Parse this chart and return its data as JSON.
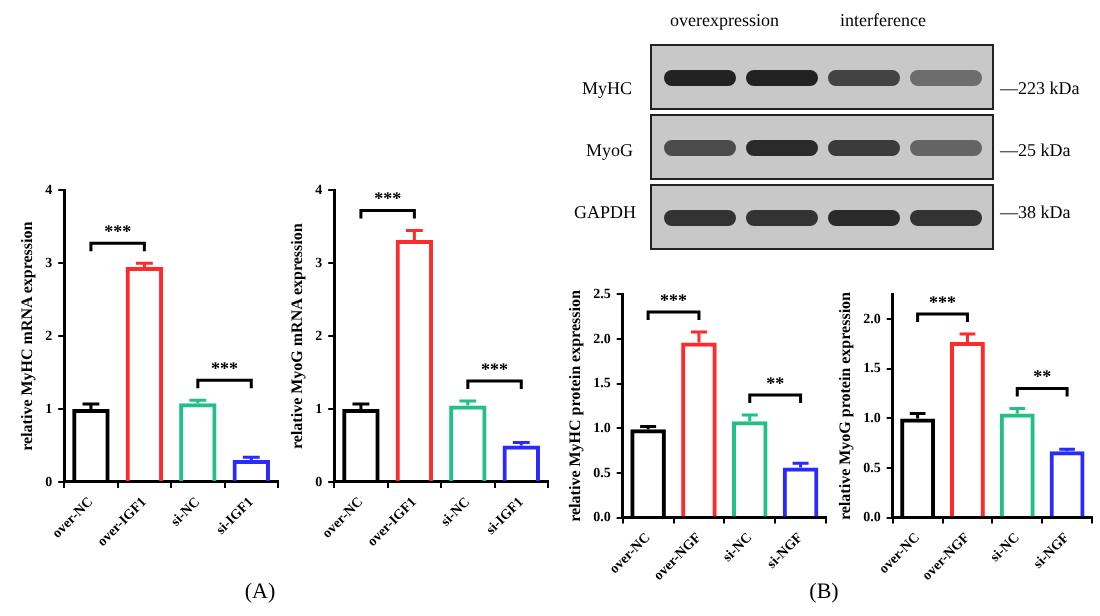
{
  "chart_data": [
    {
      "type": "bar",
      "ylabel": "relative MyHC mRNA expression",
      "categories": [
        "over-NC",
        "over-IGF1",
        "si-NC",
        "si-IGF1"
      ],
      "values": [
        1.0,
        2.95,
        1.08,
        0.3
      ],
      "errors": [
        0.07,
        0.05,
        0.04,
        0.04
      ],
      "colors": [
        "#000000",
        "#ff2a2a",
        "#22c084",
        "#2a2aff"
      ],
      "ylim": [
        0,
        4
      ],
      "yticks": [
        0,
        1,
        2,
        3,
        4
      ],
      "annotations": [
        "***",
        "***",
        "(A)"
      ]
    },
    {
      "type": "bar",
      "ylabel": "relative MyoG mRNA expression",
      "categories": [
        "over-NC",
        "over-IGF1",
        "si-NC",
        "si-IGF1"
      ],
      "values": [
        1.0,
        3.32,
        1.05,
        0.5
      ],
      "errors": [
        0.07,
        0.13,
        0.06,
        0.04
      ],
      "colors": [
        "#000000",
        "#ff2a2a",
        "#22c084",
        "#2a2aff"
      ],
      "ylim": [
        0,
        4
      ],
      "yticks": [
        0,
        1,
        2,
        3,
        4
      ],
      "annotations": [
        "***",
        "***"
      ]
    },
    {
      "type": "bar",
      "ylabel": "relative MyHC protein expression",
      "categories": [
        "over-NC",
        "over-NGF",
        "si-NC",
        "si-NGF"
      ],
      "values": [
        0.99,
        1.96,
        1.08,
        0.56
      ],
      "errors": [
        0.03,
        0.12,
        0.07,
        0.05
      ],
      "colors": [
        "#000000",
        "#ff2a2a",
        "#22c084",
        "#2a2aff"
      ],
      "ylim": [
        0,
        2.5
      ],
      "yticks": [
        {
          "value": 0,
          "label": "0.0"
        },
        {
          "value": 0.5,
          "label": "0.5"
        },
        {
          "value": 1,
          "label": "1.0"
        },
        {
          "value": 1.5,
          "label": "1.5"
        },
        {
          "value": 2,
          "label": "2.0"
        },
        {
          "value": 2.5,
          "label": "2.5"
        }
      ],
      "annotations": [
        "***",
        "**",
        "(B)"
      ]
    },
    {
      "type": "bar",
      "ylabel": "relative MyoG protein expression",
      "categories": [
        "over-NC",
        "over-NGF",
        "si-NC",
        "si-NGF"
      ],
      "values": [
        1.0,
        1.77,
        1.05,
        0.67
      ],
      "errors": [
        0.05,
        0.08,
        0.05,
        0.02
      ],
      "colors": [
        "#000000",
        "#ff2a2a",
        "#22c084",
        "#2a2aff"
      ],
      "ylim": [
        0,
        2.25
      ],
      "yticks": [
        {
          "value": 0,
          "label": "0.0"
        },
        {
          "value": 0.5,
          "label": "0.5"
        },
        {
          "value": 1,
          "label": "1.0"
        },
        {
          "value": 1.5,
          "label": "1.5"
        },
        {
          "value": 2,
          "label": "2.0"
        }
      ],
      "annotations": [
        "***",
        "**"
      ]
    },
    {
      "type": "other",
      "annotations": [
        "overexpression",
        "interference",
        "MyHC",
        "MyoG",
        "GAPDH",
        "—223 kDa",
        "—25 kDa",
        "—38 kDa"
      ]
    }
  ]
}
